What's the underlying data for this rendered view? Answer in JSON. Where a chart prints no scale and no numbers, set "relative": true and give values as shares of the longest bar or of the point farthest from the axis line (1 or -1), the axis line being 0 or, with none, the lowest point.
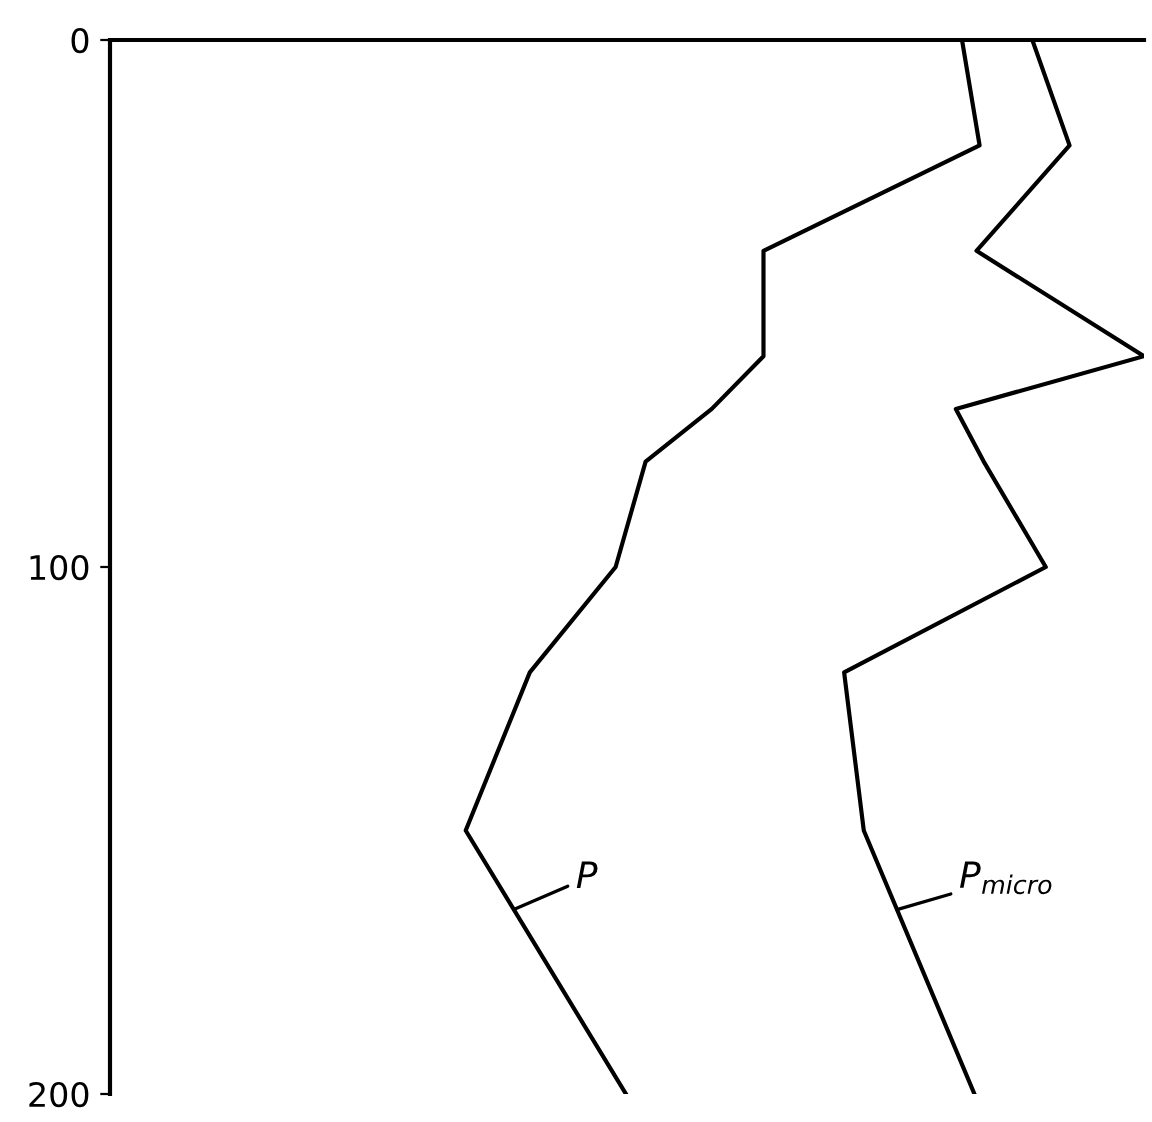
{
  "chart_data": {
    "type": "line",
    "orientation": "horizontal",
    "relative": true,
    "ylim": [
      200,
      0
    ],
    "yticks": [
      0,
      100,
      200
    ],
    "grid": false,
    "legend": "bottom",
    "marker": "none",
    "line_style": "solid",
    "tick_labels": "y",
    "series": [
      {
        "name": "P",
        "color": "#000000",
        "x": [
          0,
          20,
          40,
          60,
          70,
          80,
          100,
          120,
          150,
          200
        ],
        "values": [
          0.824,
          0.841,
          0.632,
          0.632,
          0.582,
          0.518,
          0.489,
          0.406,
          0.344,
          0.499
        ]
      },
      {
        "name": "P$_{micro}$",
        "color": "#000000",
        "x": [
          0,
          20,
          40,
          60,
          70,
          80,
          100,
          120,
          150,
          200
        ],
        "values": [
          0.892,
          0.928,
          0.838,
          1.0,
          0.818,
          0.845,
          0.905,
          0.71,
          0.729,
          0.836
        ]
      }
    ]
  }
}
